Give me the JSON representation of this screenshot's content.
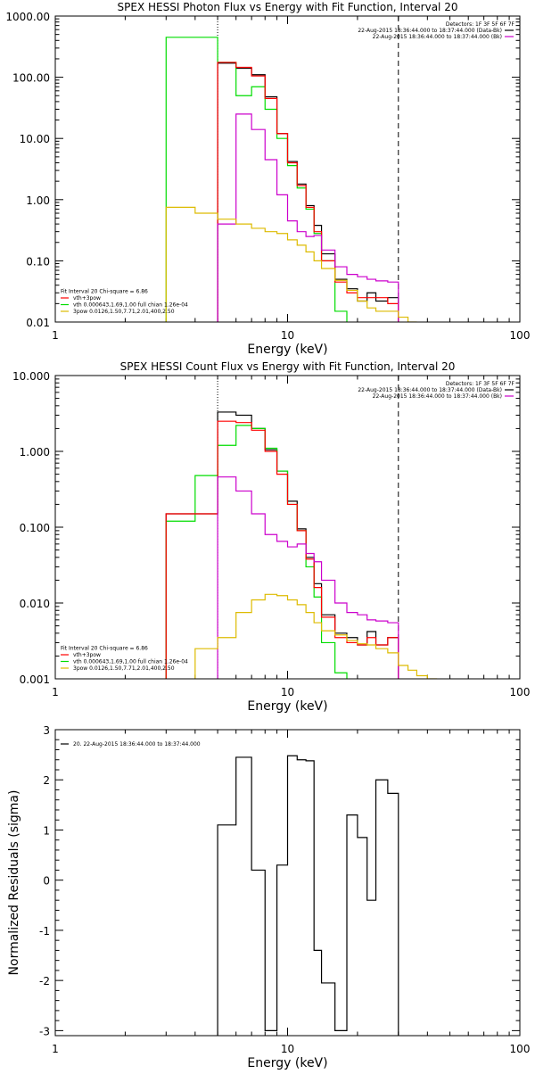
{
  "chart_data": [
    {
      "type": "line",
      "title": "SPEX HESSI Photon Flux vs Energy with Fit Function, Interval 20",
      "xlabel": "Energy (keV)",
      "ylabel": "",
      "xscale": "log",
      "yscale": "log",
      "xlim": [
        1,
        100
      ],
      "ylim": [
        0.01,
        1000
      ],
      "x_ticks": [
        {
          "v": 1,
          "label": "1"
        },
        {
          "v": 10,
          "label": "10"
        },
        {
          "v": 100,
          "label": "100"
        }
      ],
      "y_ticks": [
        {
          "v": 0.01,
          "label": "0.01"
        },
        {
          "v": 0.1,
          "label": "0.10"
        },
        {
          "v": 1,
          "label": "1.00"
        },
        {
          "v": 10,
          "label": "10.00"
        },
        {
          "v": 100,
          "label": "100.00"
        },
        {
          "v": 1000,
          "label": "1000.00"
        }
      ],
      "vlines": [
        {
          "x": 5,
          "style": "dotted"
        },
        {
          "x": 30,
          "style": "dashed"
        }
      ],
      "header_lines": [
        "Detectors: 1F 3F 5F 6F 7F",
        "22-Aug-2015 18:36:44.000 to 18:37:44.000 (Data-Bk)",
        "22-Aug-2015 18:36:44.000 to 18:37:44.000 (Bk)"
      ],
      "header_colors": [
        "",
        "#000000",
        "#cc00cc"
      ],
      "legend_lines": [
        "Fit Interval 20   Chi-square = 6.86",
        "vth+3pow",
        "vth 0.000643,1.69,1.00  full chian 1.26e-04",
        "3pow 0.0126,1.50,7.71,2.01,400,2.50"
      ],
      "legend_colors": [
        "",
        "#ff0000",
        "#00dd00",
        "#ddbb00"
      ],
      "series": [
        {
          "color": "#000000",
          "edges": [
            5,
            6,
            7,
            8,
            9,
            10,
            11,
            12,
            13,
            14,
            16,
            18,
            20,
            22,
            24,
            27,
            30
          ],
          "values": [
            170,
            140,
            110,
            48,
            12,
            4.2,
            1.8,
            0.8,
            0.38,
            0.13,
            0.05,
            0.035,
            0.022,
            0.03,
            0.022,
            0.025
          ]
        },
        {
          "color": "#00dd00",
          "edges": [
            3,
            4,
            5,
            6,
            7,
            8,
            9,
            10,
            11,
            12,
            13,
            14,
            16,
            18
          ],
          "values": [
            450,
            450,
            175,
            50,
            70,
            30,
            10,
            3.6,
            1.55,
            0.7,
            0.28,
            0.1,
            0.015
          ]
        },
        {
          "color": "#ff0000",
          "edges": [
            5,
            6,
            7,
            8,
            9,
            10,
            11,
            12,
            13,
            14,
            16,
            18,
            20,
            22,
            24,
            27,
            30
          ],
          "values": [
            175,
            145,
            105,
            45,
            12,
            4.0,
            1.7,
            0.75,
            0.3,
            0.1,
            0.045,
            0.03,
            0.025,
            0.025,
            0.025,
            0.02
          ]
        },
        {
          "color": "#cc00cc",
          "edges": [
            5,
            6,
            7,
            8,
            9,
            10,
            11,
            12,
            13,
            14,
            16,
            18,
            20,
            22,
            24,
            27,
            30
          ],
          "values": [
            0.4,
            25,
            14,
            4.5,
            1.2,
            0.45,
            0.3,
            0.25,
            0.26,
            0.15,
            0.08,
            0.06,
            0.055,
            0.05,
            0.047,
            0.045
          ]
        },
        {
          "color": "#ddbb00",
          "edges": [
            3,
            4,
            5,
            6,
            7,
            8,
            9,
            10,
            11,
            12,
            13,
            14,
            16,
            18,
            20,
            22,
            24,
            27,
            30,
            33,
            36
          ],
          "values": [
            0.75,
            0.6,
            0.48,
            0.4,
            0.34,
            0.3,
            0.28,
            0.22,
            0.18,
            0.14,
            0.1,
            0.075,
            0.048,
            0.033,
            0.022,
            0.017,
            0.015,
            0.015,
            0.012,
            0.009
          ]
        }
      ]
    },
    {
      "type": "line",
      "title": "SPEX HESSI Count Flux vs Energy with Fit Function, Interval 20",
      "xlabel": "Energy (keV)",
      "ylabel": "",
      "xscale": "log",
      "yscale": "log",
      "xlim": [
        1,
        100
      ],
      "ylim": [
        0.001,
        10
      ],
      "x_ticks": [
        {
          "v": 1,
          "label": "1"
        },
        {
          "v": 10,
          "label": "10"
        },
        {
          "v": 100,
          "label": "100"
        }
      ],
      "y_ticks": [
        {
          "v": 0.001,
          "label": "0.001"
        },
        {
          "v": 0.01,
          "label": "0.010"
        },
        {
          "v": 0.1,
          "label": "0.100"
        },
        {
          "v": 1,
          "label": "1.000"
        },
        {
          "v": 10,
          "label": "10.000"
        }
      ],
      "vlines": [
        {
          "x": 5,
          "style": "dotted"
        },
        {
          "x": 30,
          "style": "dashed"
        }
      ],
      "header_lines": [
        "Detectors: 1F 3F 5F 6F 7F",
        "22-Aug-2015 18:36:44.000 to 18:37:44.000 (Data-Bk)",
        "22-Aug-2015 18:36:44.000 to 18:37:44.000 (Bk)"
      ],
      "header_colors": [
        "",
        "#000000",
        "#cc00cc"
      ],
      "legend_lines": [
        "Fit Interval 20   Chi-square = 6.86",
        "vth+3pow",
        "vth 0.000643,1.69,1.00  full chian 1.26e-04",
        "3pow 0.0126,1.50,7.71,2.01,400,2.50"
      ],
      "legend_colors": [
        "",
        "#ff0000",
        "#00dd00",
        "#ddbb00"
      ],
      "series": [
        {
          "color": "#000000",
          "edges": [
            3,
            4,
            5,
            6,
            7,
            8,
            9,
            10,
            11,
            12,
            13,
            14,
            16,
            18,
            20,
            22,
            24,
            27,
            30
          ],
          "values": [
            0.15,
            0.15,
            3.3,
            3.0,
            2.0,
            1.05,
            0.55,
            0.22,
            0.095,
            0.04,
            0.018,
            0.007,
            0.004,
            0.0035,
            0.0028,
            0.0042,
            0.0028,
            0.0035
          ]
        },
        {
          "color": "#00dd00",
          "edges": [
            3,
            4,
            5,
            6,
            7,
            8,
            9,
            10,
            11,
            12,
            13,
            14,
            16,
            18
          ],
          "values": [
            0.12,
            0.48,
            1.2,
            2.2,
            2.0,
            1.1,
            0.55,
            0.2,
            0.09,
            0.03,
            0.012,
            0.003,
            0.0012
          ]
        },
        {
          "color": "#ff0000",
          "edges": [
            3,
            4,
            5,
            6,
            7,
            8,
            9,
            10,
            11,
            12,
            13,
            14,
            16,
            18,
            20,
            22,
            24,
            27,
            30
          ],
          "values": [
            0.15,
            0.15,
            2.5,
            2.4,
            1.9,
            1.0,
            0.5,
            0.2,
            0.09,
            0.038,
            0.016,
            0.0065,
            0.0035,
            0.003,
            0.0028,
            0.0035,
            0.0028,
            0.0035
          ]
        },
        {
          "color": "#cc00cc",
          "edges": [
            5,
            6,
            7,
            8,
            9,
            10,
            11,
            12,
            13,
            14,
            16,
            18,
            20,
            22,
            24,
            27,
            30
          ],
          "values": [
            0.46,
            0.3,
            0.15,
            0.08,
            0.065,
            0.055,
            0.06,
            0.045,
            0.035,
            0.02,
            0.01,
            0.0075,
            0.007,
            0.006,
            0.0058,
            0.0055
          ]
        },
        {
          "color": "#ddbb00",
          "edges": [
            4,
            5,
            6,
            7,
            8,
            9,
            10,
            11,
            12,
            13,
            14,
            16,
            18,
            20,
            22,
            24,
            27,
            30,
            33,
            36,
            40,
            44
          ],
          "values": [
            0.0025,
            0.0035,
            0.0075,
            0.011,
            0.013,
            0.0125,
            0.011,
            0.0095,
            0.0075,
            0.0055,
            0.0043,
            0.0038,
            0.0032,
            0.0029,
            0.0028,
            0.0025,
            0.0022,
            0.0015,
            0.0013,
            0.0011,
            0.001
          ]
        }
      ]
    },
    {
      "type": "line",
      "title": "",
      "xlabel": "Energy (keV)",
      "ylabel": "Normalized Residuals (sigma)",
      "xscale": "log",
      "yscale": "linear",
      "xlim": [
        1,
        100
      ],
      "ylim": [
        -3.1,
        3
      ],
      "x_ticks": [
        {
          "v": 1,
          "label": "1"
        },
        {
          "v": 10,
          "label": "10"
        },
        {
          "v": 100,
          "label": "100"
        }
      ],
      "y_ticks": [
        {
          "v": -3,
          "label": "-3"
        },
        {
          "v": -2,
          "label": "-2"
        },
        {
          "v": -1,
          "label": "-1"
        },
        {
          "v": 0,
          "label": "0"
        },
        {
          "v": 1,
          "label": "1"
        },
        {
          "v": 2,
          "label": "2"
        },
        {
          "v": 3,
          "label": "3"
        }
      ],
      "vlines": [],
      "header_lines": [],
      "header_colors": [],
      "legend_lines": [
        "20. 22-Aug-2015 18:36:44.000 to 18:37:44.000"
      ],
      "legend_colors": [
        "#000000"
      ],
      "series": [
        {
          "color": "#000000",
          "edges": [
            5,
            6,
            7,
            8,
            9,
            10,
            11,
            12,
            13,
            14,
            16,
            18,
            20,
            22,
            24,
            27,
            30
          ],
          "values": [
            1.1,
            2.45,
            0.2,
            -3.0,
            0.3,
            2.48,
            2.4,
            2.38,
            -1.4,
            -2.05,
            -3.0,
            1.3,
            0.85,
            -0.4,
            2.0,
            1.73
          ]
        }
      ]
    }
  ]
}
